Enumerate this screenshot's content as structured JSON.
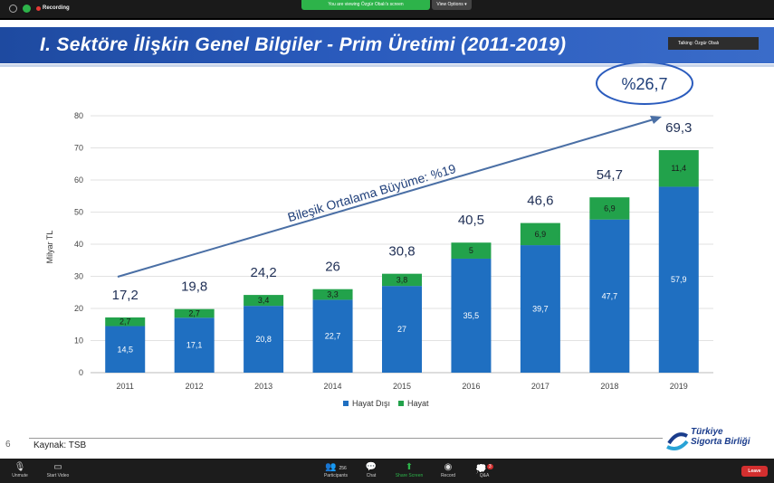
{
  "zoom": {
    "recording_label": "Recording",
    "viewing_banner": "You are viewing Özgür Obalı's screen",
    "view_options_label": "View Options",
    "talking_label": "Talking: Özgür Obalı",
    "toolbar": {
      "unmute": "Unmute",
      "start_video": "Start Video",
      "participants": "Participants",
      "participants_count": "256",
      "chat": "Chat",
      "share_screen": "Share Screen",
      "record": "Record",
      "qa": "Q&A",
      "qa_badge": "3",
      "leave": "Leave"
    }
  },
  "slide": {
    "title": "I. Sektöre İlişkin Genel Bilgiler - Prim Üretimi (2011-2019)",
    "page_number": "6",
    "source": "Kaynak: TSB",
    "logo_line1": "Türkiye",
    "logo_line2": "Sigorta Birliği",
    "growth_note": "%26,7",
    "cagr_label": "Bileşik Ortalama Büyüme: %19"
  },
  "chart_data": {
    "type": "bar",
    "stacked": true,
    "categories": [
      "2011",
      "2012",
      "2013",
      "2014",
      "2015",
      "2016",
      "2017",
      "2018",
      "2019"
    ],
    "series": [
      {
        "name": "Hayat Dışı",
        "color": "#1f6fc1",
        "values": [
          14.5,
          17.1,
          20.8,
          22.7,
          27,
          35.5,
          39.7,
          47.7,
          57.9
        ],
        "labels": [
          "14,5",
          "17,1",
          "20,8",
          "22,7",
          "27",
          "35,5",
          "39,7",
          "47,7",
          "57,9"
        ]
      },
      {
        "name": "Hayat",
        "color": "#22a24b",
        "values": [
          2.7,
          2.7,
          3.4,
          3.3,
          3.8,
          5,
          6.9,
          6.9,
          11.4
        ],
        "labels": [
          "2,7",
          "2,7",
          "3,4",
          "3,3",
          "3,8",
          "5",
          "6,9",
          "6,9",
          "11,4"
        ]
      }
    ],
    "totals": [
      17.2,
      19.8,
      24.2,
      26,
      30.8,
      40.5,
      46.6,
      54.7,
      69.3
    ],
    "total_labels": [
      "17,2",
      "19,8",
      "24,2",
      "26",
      "30,8",
      "40,5",
      "46,6",
      "54,7",
      "69,3"
    ],
    "ylabel": "Milyar TL",
    "ylim": [
      0,
      80
    ],
    "yticks": [
      0,
      10,
      20,
      30,
      40,
      50,
      60,
      70,
      80
    ],
    "grid": true,
    "legend_position": "bottom-center"
  }
}
